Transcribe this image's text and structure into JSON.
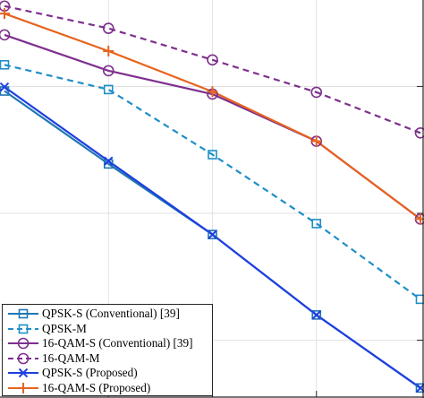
{
  "chart_data": {
    "type": "line",
    "x": [
      1,
      2,
      3,
      4,
      5
    ],
    "y_scale": "log",
    "series": [
      {
        "name": "QPSK-S (Conventional) [39]",
        "color": "#1f77b4",
        "dash": "solid",
        "marker": "square",
        "values": [
          0.092,
          0.0245,
          0.0068,
          0.00158,
          0.00042
        ]
      },
      {
        "name": "QPSK-M",
        "color": "#1f8fc8",
        "dash": "dashed",
        "marker": "square",
        "values": [
          0.148,
          0.0945,
          0.029,
          0.0083,
          0.0021
        ]
      },
      {
        "name": "16-QAM-S (Conventional) [39]",
        "color": "#7e2f8e",
        "dash": "solid",
        "marker": "circle",
        "values": [
          0.255,
          0.133,
          0.087,
          0.037,
          0.009
        ]
      },
      {
        "name": "16-QAM-M",
        "color": "#7e2f8e",
        "dash": "dashed",
        "marker": "circle",
        "values": [
          0.43,
          0.287,
          0.162,
          0.09,
          0.043
        ]
      },
      {
        "name": "QPSK-S (Proposed)",
        "color": "#1f3fe0",
        "dash": "solid",
        "marker": "x",
        "values": [
          0.099,
          0.0258,
          0.0068,
          0.00158,
          0.00042
        ]
      },
      {
        "name": "16-QAM-S (Proposed)",
        "color": "#e6641e",
        "dash": "solid",
        "marker": "plus",
        "values": [
          0.375,
          0.19,
          0.091,
          0.037,
          0.009
        ]
      }
    ],
    "xlim": [
      1,
      5
    ],
    "ylim": [
      0.00035,
      0.48
    ],
    "grid": true,
    "legend_position": "bottom-left"
  }
}
